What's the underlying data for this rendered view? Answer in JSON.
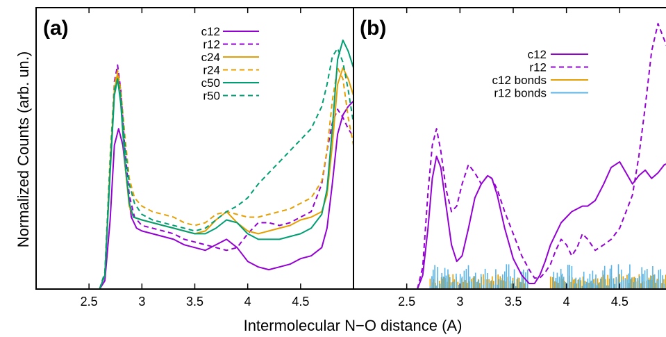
{
  "figure": {
    "ylabel": "Normalized Counts (arb. un.)",
    "xlabel": "Intermolecular N−O distance (A)"
  },
  "colors": {
    "c12": "#9400d3",
    "r12": "#9400d3",
    "c24": "#e69f00",
    "r24": "#e69f00",
    "c50": "#009e73",
    "r50": "#009e73",
    "c12 bonds": "#e69f00",
    "r12 bonds": "#56b4e9"
  },
  "chart_data": [
    {
      "type": "line",
      "panel_label": "(a)",
      "xlim": [
        2.0,
        5.0
      ],
      "ylim": [
        0,
        1
      ],
      "xticks": [
        "2.5",
        "3",
        "3.5",
        "4",
        "4.5"
      ],
      "xtick_values": [
        2.5,
        3.0,
        3.5,
        4.0,
        4.5
      ],
      "grid": false,
      "legend": "top-center",
      "series": [
        {
          "name": "c12",
          "style": "solid",
          "x": [
            2.6,
            2.65,
            2.7,
            2.74,
            2.78,
            2.82,
            2.86,
            2.9,
            2.95,
            3.0,
            3.1,
            3.2,
            3.3,
            3.4,
            3.5,
            3.6,
            3.7,
            3.8,
            3.9,
            4.0,
            4.1,
            4.2,
            4.3,
            4.4,
            4.5,
            4.6,
            4.7,
            4.75,
            4.8,
            4.85,
            4.9,
            4.95,
            5.0
          ],
          "y": [
            0.0,
            0.03,
            0.25,
            0.52,
            0.58,
            0.52,
            0.38,
            0.26,
            0.22,
            0.21,
            0.2,
            0.19,
            0.18,
            0.16,
            0.15,
            0.14,
            0.16,
            0.18,
            0.15,
            0.1,
            0.08,
            0.07,
            0.08,
            0.09,
            0.11,
            0.12,
            0.15,
            0.22,
            0.38,
            0.56,
            0.63,
            0.66,
            0.68
          ]
        },
        {
          "name": "r12",
          "style": "dashed",
          "x": [
            2.6,
            2.65,
            2.7,
            2.74,
            2.77,
            2.8,
            2.84,
            2.88,
            2.93,
            3.0,
            3.1,
            3.2,
            3.3,
            3.4,
            3.5,
            3.6,
            3.7,
            3.8,
            3.9,
            4.0,
            4.1,
            4.2,
            4.3,
            4.4,
            4.5,
            4.6,
            4.7,
            4.75,
            4.8,
            4.85,
            4.9,
            4.95,
            5.0
          ],
          "y": [
            0.0,
            0.05,
            0.45,
            0.75,
            0.81,
            0.72,
            0.5,
            0.34,
            0.26,
            0.23,
            0.22,
            0.21,
            0.2,
            0.18,
            0.17,
            0.16,
            0.15,
            0.14,
            0.15,
            0.2,
            0.24,
            0.24,
            0.23,
            0.24,
            0.26,
            0.28,
            0.38,
            0.5,
            0.6,
            0.65,
            0.62,
            0.58,
            0.55
          ]
        },
        {
          "name": "c24",
          "style": "solid",
          "x": [
            2.6,
            2.65,
            2.7,
            2.74,
            2.77,
            2.8,
            2.84,
            2.88,
            2.92,
            3.0,
            3.1,
            3.2,
            3.3,
            3.4,
            3.5,
            3.6,
            3.7,
            3.8,
            3.9,
            4.0,
            4.1,
            4.2,
            4.3,
            4.4,
            4.5,
            4.6,
            4.7,
            4.75,
            4.8,
            4.85,
            4.9,
            4.95,
            5.0
          ],
          "y": [
            0.0,
            0.05,
            0.45,
            0.72,
            0.78,
            0.68,
            0.45,
            0.3,
            0.26,
            0.25,
            0.24,
            0.23,
            0.22,
            0.21,
            0.2,
            0.21,
            0.25,
            0.28,
            0.24,
            0.21,
            0.2,
            0.21,
            0.22,
            0.23,
            0.25,
            0.26,
            0.28,
            0.34,
            0.52,
            0.74,
            0.8,
            0.76,
            0.7
          ]
        },
        {
          "name": "r24",
          "style": "dashed",
          "x": [
            2.6,
            2.65,
            2.7,
            2.74,
            2.77,
            2.8,
            2.84,
            2.88,
            2.93,
            3.0,
            3.1,
            3.2,
            3.3,
            3.4,
            3.5,
            3.6,
            3.7,
            3.8,
            3.9,
            4.0,
            4.1,
            4.2,
            4.3,
            4.4,
            4.5,
            4.6,
            4.7,
            4.75,
            4.8,
            4.85,
            4.9,
            4.95,
            5.0
          ],
          "y": [
            0.0,
            0.06,
            0.48,
            0.74,
            0.79,
            0.72,
            0.55,
            0.4,
            0.33,
            0.3,
            0.28,
            0.27,
            0.26,
            0.24,
            0.23,
            0.24,
            0.27,
            0.28,
            0.27,
            0.26,
            0.26,
            0.27,
            0.28,
            0.29,
            0.31,
            0.33,
            0.39,
            0.5,
            0.68,
            0.8,
            0.76,
            0.62,
            0.52
          ]
        },
        {
          "name": "c50",
          "style": "solid",
          "x": [
            2.6,
            2.65,
            2.7,
            2.74,
            2.77,
            2.8,
            2.84,
            2.88,
            2.92,
            3.0,
            3.1,
            3.2,
            3.3,
            3.4,
            3.5,
            3.6,
            3.7,
            3.8,
            3.9,
            4.0,
            4.1,
            4.2,
            4.3,
            4.4,
            4.5,
            4.6,
            4.7,
            4.75,
            4.8,
            4.85,
            4.9,
            4.95,
            5.0
          ],
          "y": [
            0.0,
            0.05,
            0.42,
            0.7,
            0.76,
            0.67,
            0.46,
            0.31,
            0.26,
            0.25,
            0.24,
            0.23,
            0.22,
            0.21,
            0.2,
            0.2,
            0.22,
            0.25,
            0.24,
            0.2,
            0.18,
            0.18,
            0.18,
            0.19,
            0.2,
            0.22,
            0.27,
            0.36,
            0.58,
            0.83,
            0.9,
            0.86,
            0.8
          ]
        },
        {
          "name": "r50",
          "style": "dashed",
          "x": [
            2.6,
            2.65,
            2.7,
            2.74,
            2.77,
            2.8,
            2.84,
            2.88,
            2.93,
            3.0,
            3.1,
            3.2,
            3.3,
            3.4,
            3.5,
            3.6,
            3.7,
            3.8,
            3.9,
            4.0,
            4.1,
            4.2,
            4.3,
            4.4,
            4.5,
            4.6,
            4.7,
            4.75,
            4.8,
            4.85,
            4.9,
            4.95,
            5.0
          ],
          "y": [
            0.0,
            0.06,
            0.46,
            0.72,
            0.76,
            0.7,
            0.52,
            0.38,
            0.31,
            0.27,
            0.25,
            0.24,
            0.23,
            0.22,
            0.21,
            0.22,
            0.25,
            0.28,
            0.3,
            0.33,
            0.38,
            0.42,
            0.46,
            0.5,
            0.54,
            0.58,
            0.66,
            0.74,
            0.84,
            0.87,
            0.82,
            0.72,
            0.6
          ]
        }
      ]
    },
    {
      "type": "line",
      "panel_label": "(b)",
      "xlim": [
        2.0,
        5.0
      ],
      "ylim": [
        0,
        1
      ],
      "xticks": [
        "2.5",
        "3",
        "3.5",
        "4",
        "4.5"
      ],
      "xtick_values": [
        2.5,
        3.0,
        3.5,
        4.0,
        4.5
      ],
      "grid": false,
      "legend": "top-right",
      "series": [
        {
          "name": "c12",
          "style": "solid",
          "x": [
            2.6,
            2.65,
            2.7,
            2.74,
            2.78,
            2.82,
            2.87,
            2.92,
            2.97,
            3.02,
            3.08,
            3.14,
            3.2,
            3.26,
            3.3,
            3.35,
            3.42,
            3.5,
            3.58,
            3.65,
            3.7,
            3.75,
            3.8,
            3.85,
            3.9,
            3.95,
            4.0,
            4.05,
            4.1,
            4.15,
            4.2,
            4.27,
            4.35,
            4.42,
            4.5,
            4.56,
            4.62,
            4.68,
            4.74,
            4.8,
            4.86,
            4.92,
            5.0
          ],
          "y": [
            0.0,
            0.05,
            0.22,
            0.4,
            0.48,
            0.44,
            0.3,
            0.16,
            0.1,
            0.12,
            0.22,
            0.33,
            0.38,
            0.41,
            0.4,
            0.34,
            0.22,
            0.11,
            0.05,
            0.02,
            0.02,
            0.05,
            0.1,
            0.16,
            0.2,
            0.24,
            0.26,
            0.28,
            0.29,
            0.3,
            0.3,
            0.32,
            0.38,
            0.44,
            0.46,
            0.42,
            0.38,
            0.41,
            0.43,
            0.4,
            0.42,
            0.45,
            0.46
          ]
        },
        {
          "name": "r12",
          "style": "dashed",
          "x": [
            2.6,
            2.65,
            2.7,
            2.74,
            2.78,
            2.82,
            2.87,
            2.92,
            2.97,
            3.02,
            3.08,
            3.14,
            3.2,
            3.26,
            3.3,
            3.35,
            3.42,
            3.5,
            3.58,
            3.65,
            3.7,
            3.75,
            3.8,
            3.85,
            3.9,
            3.95,
            4.0,
            4.05,
            4.1,
            4.15,
            4.2,
            4.27,
            4.35,
            4.42,
            4.5,
            4.56,
            4.62,
            4.68,
            4.74,
            4.8,
            4.86,
            4.92,
            5.0
          ],
          "y": [
            0.0,
            0.08,
            0.35,
            0.52,
            0.58,
            0.5,
            0.36,
            0.28,
            0.3,
            0.38,
            0.45,
            0.42,
            0.38,
            0.41,
            0.4,
            0.36,
            0.28,
            0.2,
            0.12,
            0.07,
            0.04,
            0.04,
            0.06,
            0.09,
            0.14,
            0.18,
            0.16,
            0.12,
            0.15,
            0.2,
            0.18,
            0.14,
            0.16,
            0.18,
            0.22,
            0.28,
            0.34,
            0.48,
            0.66,
            0.86,
            0.96,
            0.9,
            0.82
          ]
        }
      ],
      "legend_extra": [
        {
          "name": "c12 bonds",
          "style": "rug"
        },
        {
          "name": "r12 bonds",
          "style": "rug"
        }
      ],
      "rug": {
        "c12 bonds": {
          "ranges": [
            [
              2.72,
              3.62
            ],
            [
              3.85,
              4.98
            ]
          ]
        },
        "r12 bonds": {
          "ranges": [
            [
              2.72,
              3.65
            ],
            [
              3.88,
              4.98
            ]
          ]
        }
      }
    }
  ]
}
